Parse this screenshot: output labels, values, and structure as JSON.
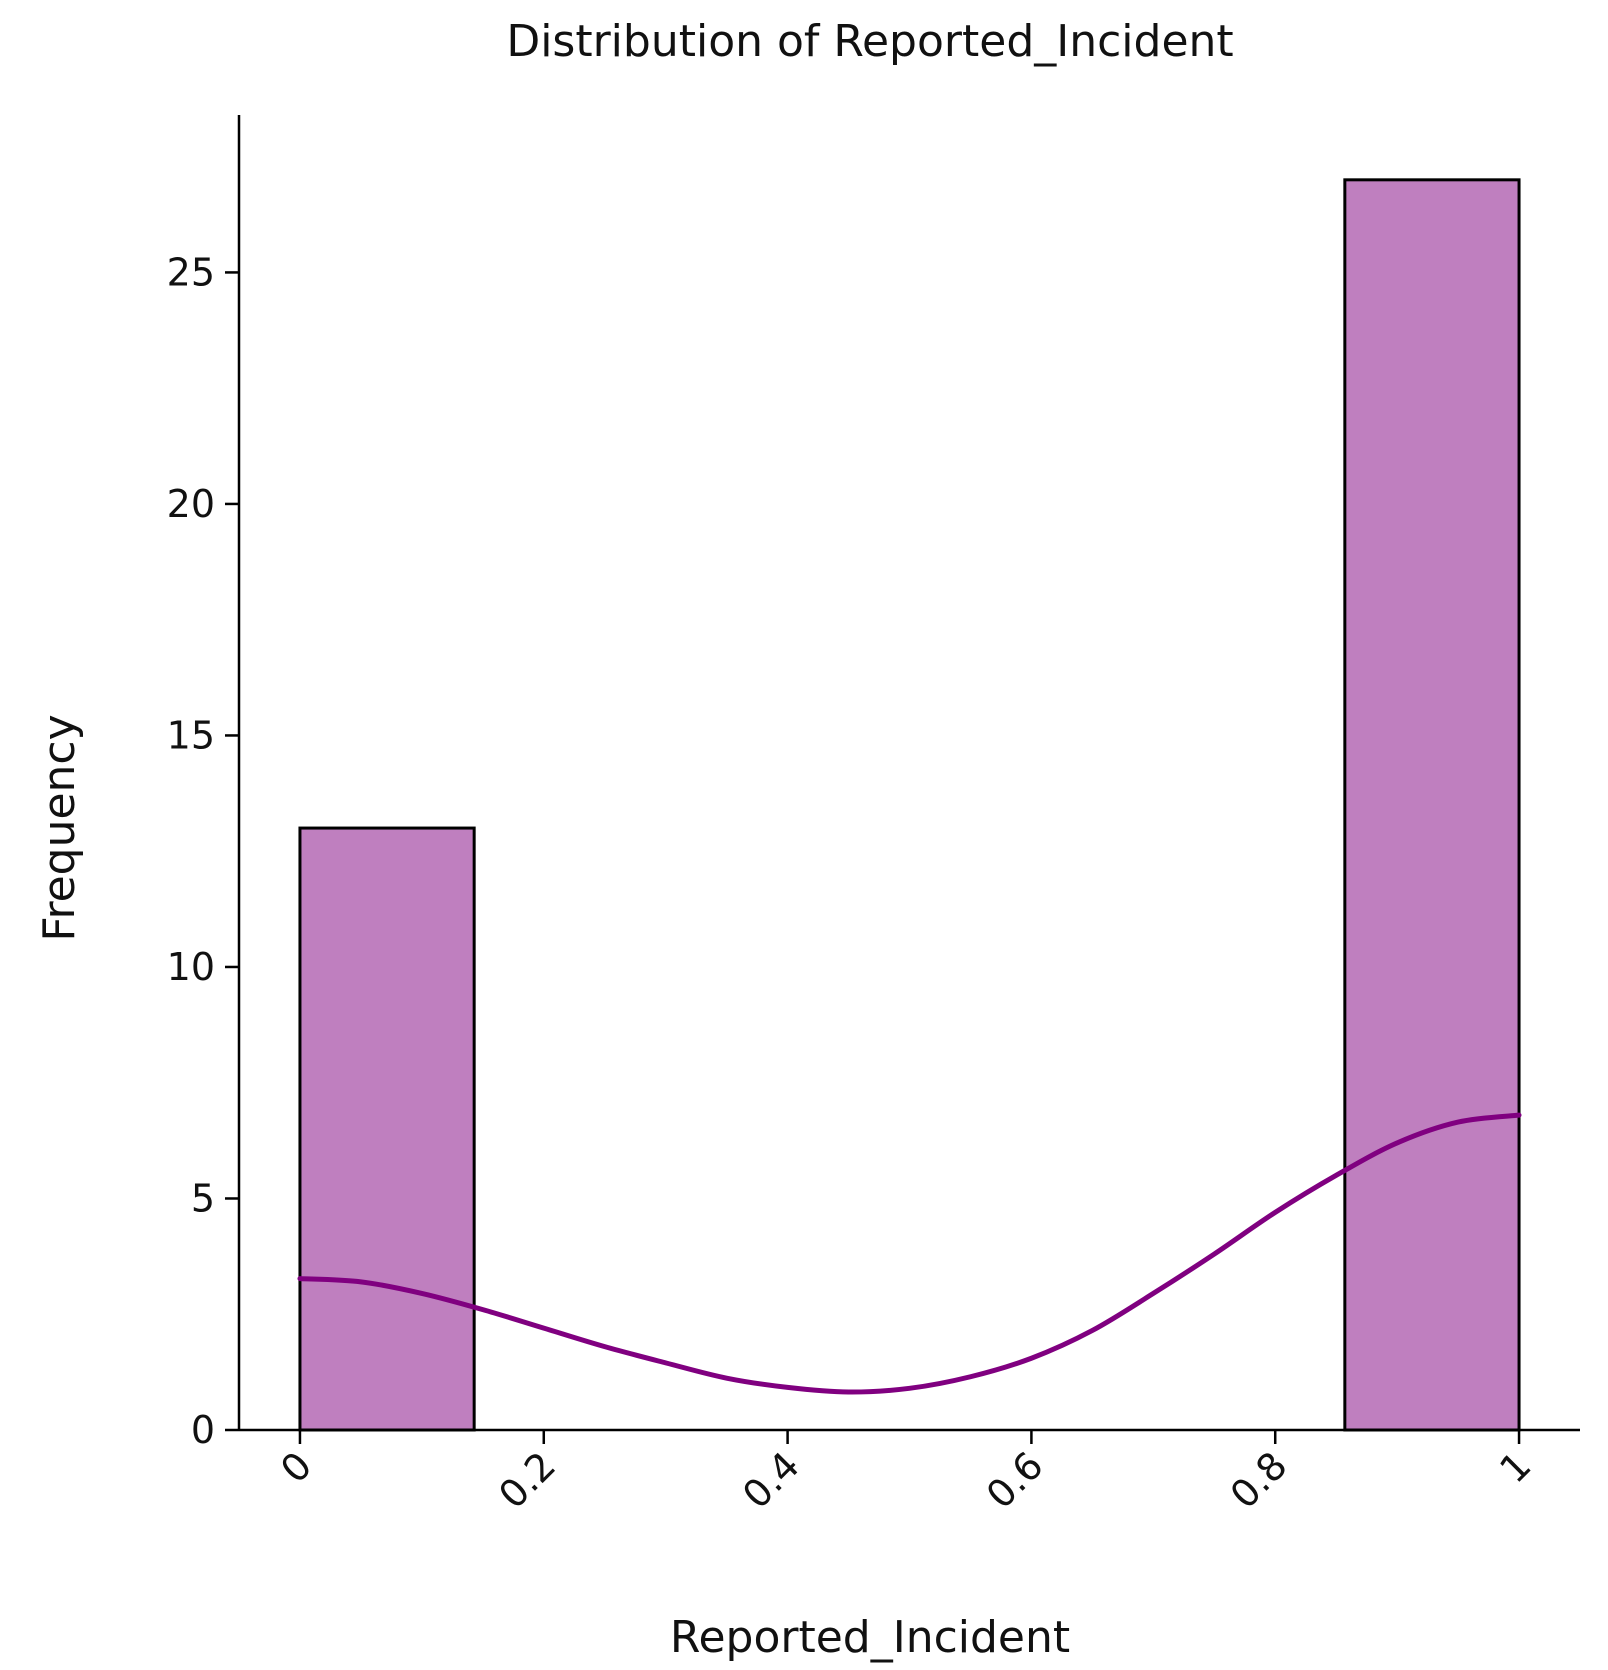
{
  "chart_data": {
    "type": "bar",
    "subtype": "histogram-with-kde",
    "title": "Distribution of Reported_Incident",
    "xlabel": "Reported_Incident",
    "ylabel": "Frequency",
    "xlim": [
      -0.05,
      1.05
    ],
    "ylim": [
      0,
      28.4
    ],
    "grid": false,
    "x_ticks": [
      0,
      0.2,
      0.4,
      0.6,
      0.8,
      1
    ],
    "x_tick_labels": [
      "0",
      "0.2",
      "0.4",
      "0.6",
      "0.8",
      "1"
    ],
    "y_ticks": [
      0,
      5,
      10,
      15,
      20,
      25
    ],
    "y_tick_labels": [
      "0",
      "5",
      "10",
      "15",
      "20",
      "25"
    ],
    "bins": [
      {
        "x0": 0.0,
        "x1": 0.1429,
        "count": 13
      },
      {
        "x0": 0.8571,
        "x1": 1.0,
        "count": 27
      }
    ],
    "kde": {
      "x": [
        0.0,
        0.05,
        0.1,
        0.15,
        0.2,
        0.25,
        0.3,
        0.35,
        0.4,
        0.45,
        0.5,
        0.55,
        0.6,
        0.65,
        0.7,
        0.75,
        0.8,
        0.85,
        0.9,
        0.95,
        1.0
      ],
      "y": [
        3.27,
        3.2,
        2.95,
        2.6,
        2.2,
        1.8,
        1.45,
        1.12,
        0.92,
        0.82,
        0.9,
        1.15,
        1.55,
        2.15,
        2.95,
        3.8,
        4.7,
        5.5,
        6.2,
        6.65,
        6.8
      ]
    },
    "colors": {
      "bar_fill": "#bf7fbf",
      "bar_edge": "#000000",
      "kde_line": "#800080"
    }
  }
}
